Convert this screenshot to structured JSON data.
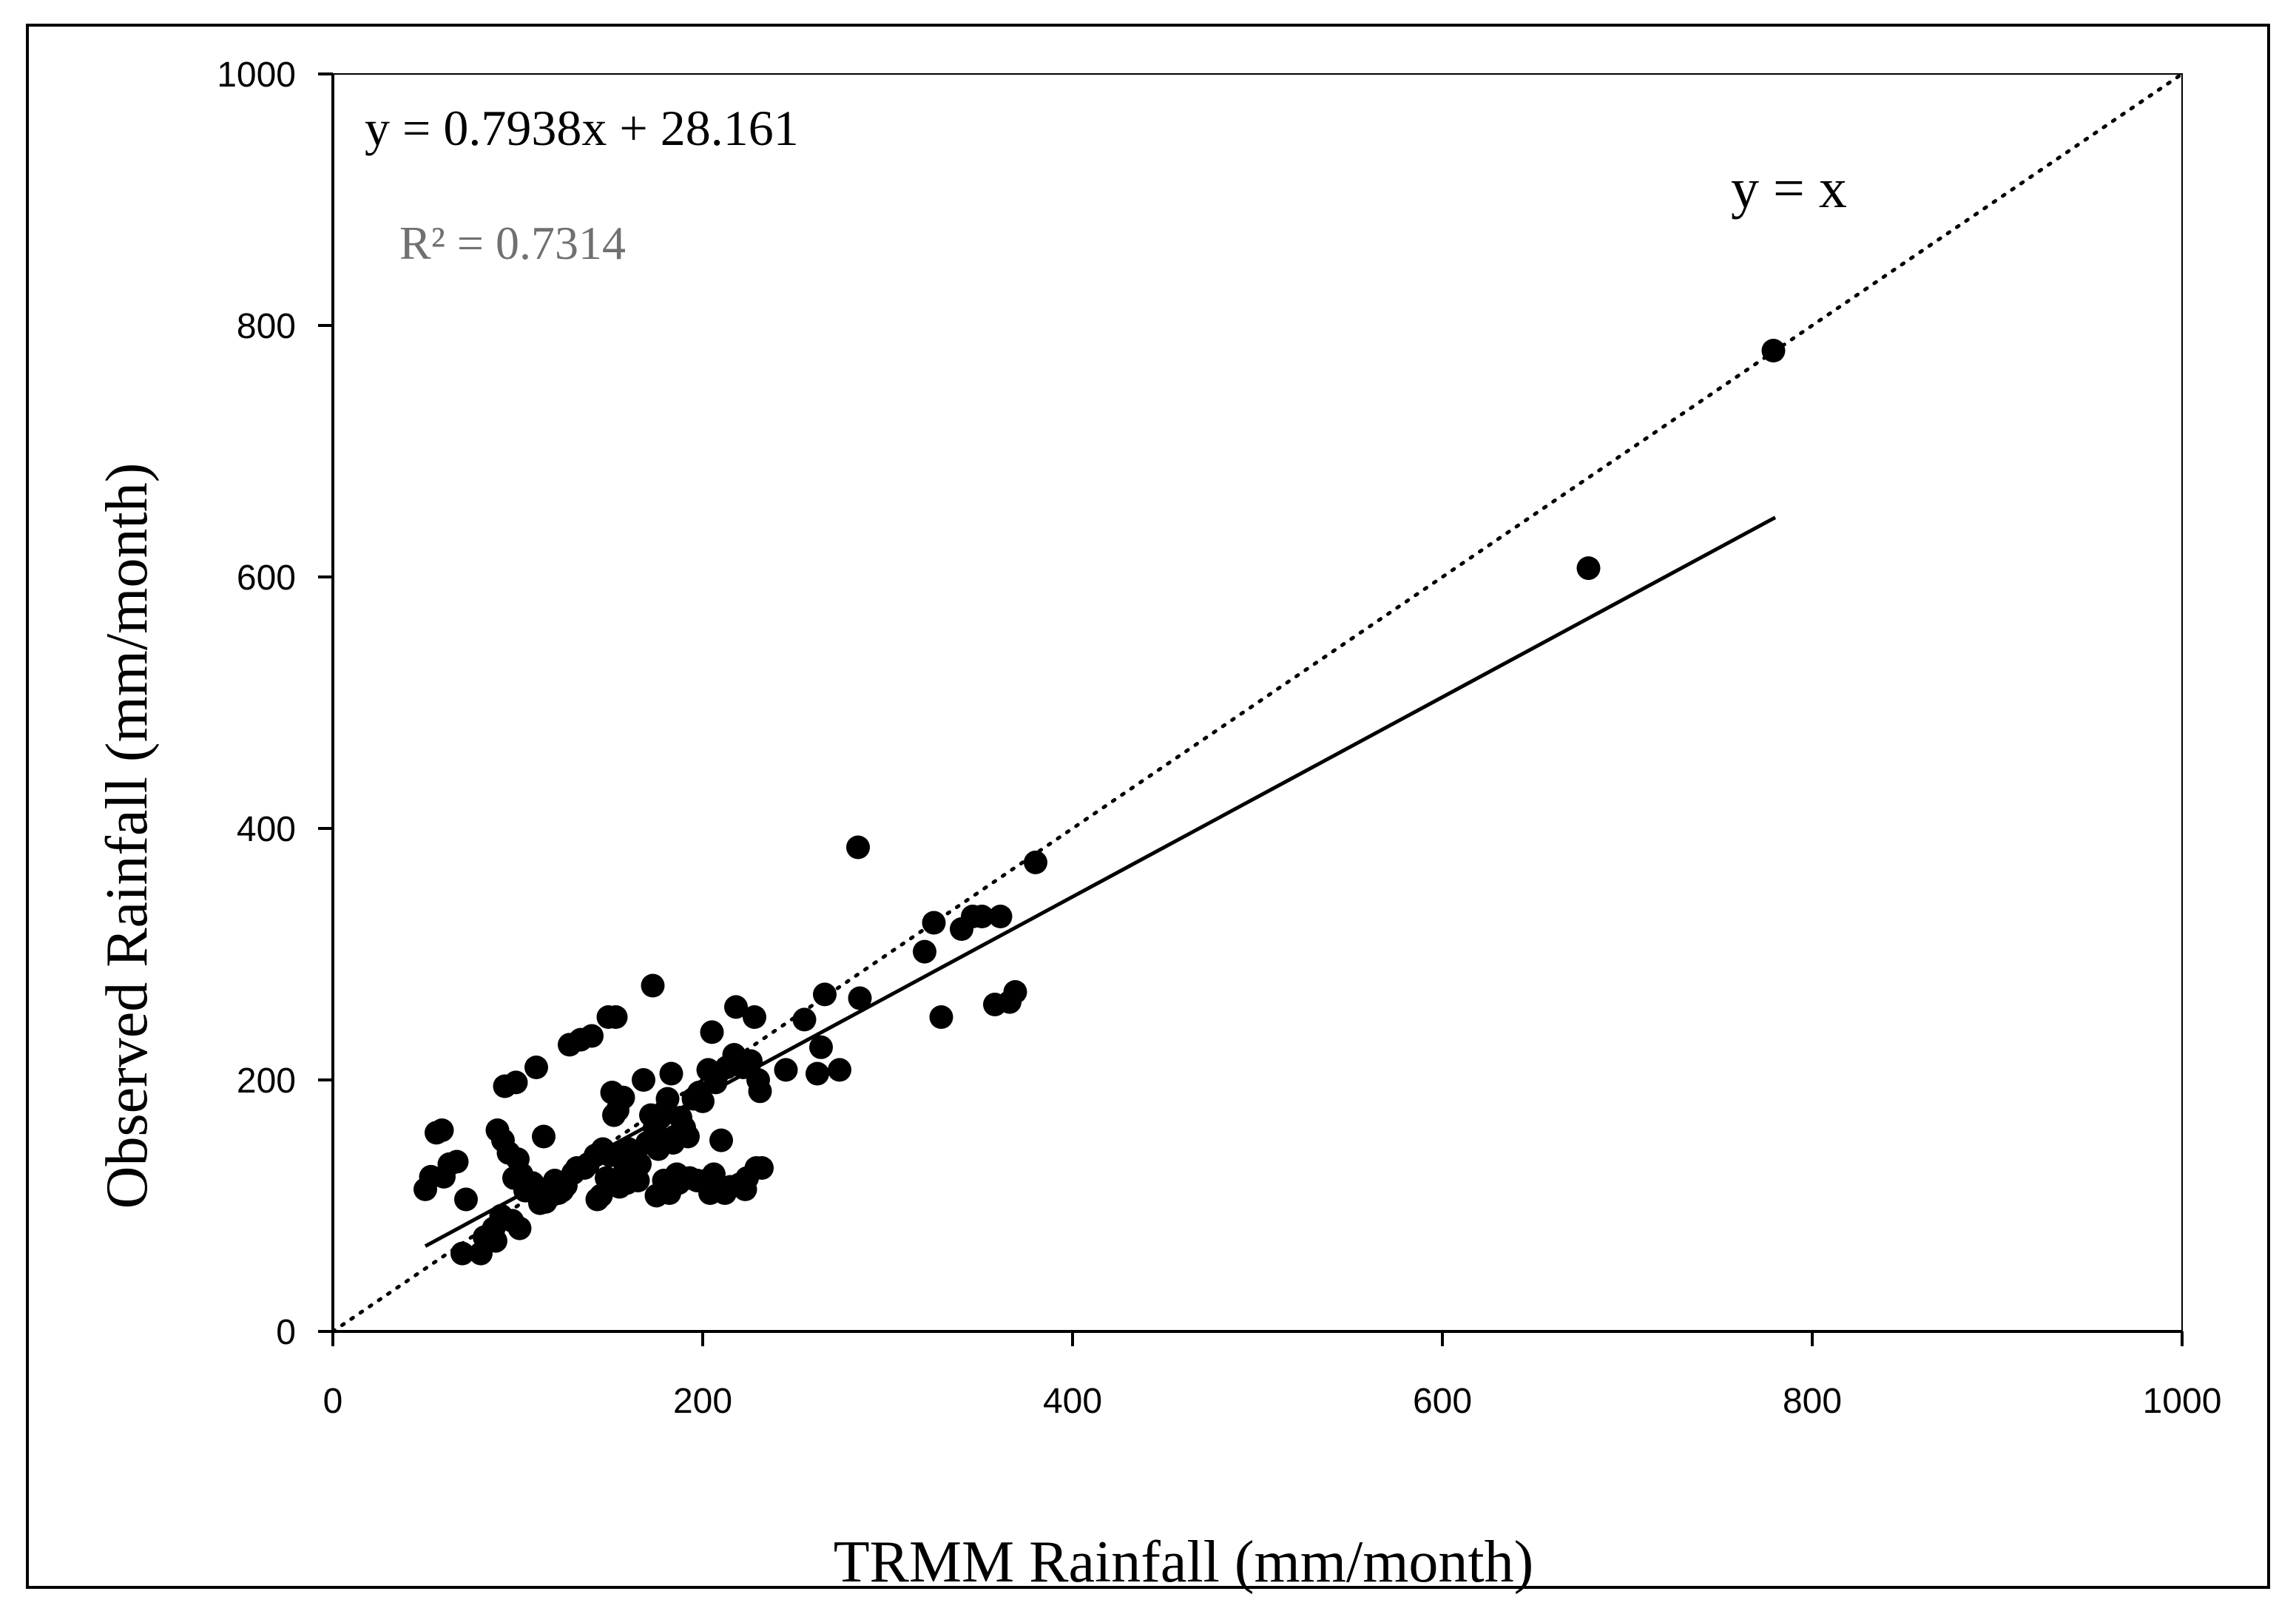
{
  "chart_data": {
    "type": "scatter",
    "xlabel": "TRMM Rainfall (mm/month)",
    "ylabel": "Observed Rainfall (mm/month)",
    "xlim": [
      0,
      1000
    ],
    "ylim": [
      0,
      1000
    ],
    "xticks": [
      "0",
      "200",
      "400",
      "600",
      "800",
      "1000"
    ],
    "yticks": [
      "0",
      "200",
      "400",
      "600",
      "800",
      "1000"
    ],
    "grid": false,
    "legend": "none",
    "annotations": {
      "equation": "y = 0.7938x + 28.161",
      "r_squared": "R² = 0.7314",
      "identity_label": "y = x"
    },
    "trendline": {
      "slope": 0.7938,
      "intercept": 28.161,
      "x_range": [
        50,
        780
      ]
    },
    "identity_line": {
      "x_range": [
        0,
        1000
      ]
    },
    "colors": {
      "points": "#000000",
      "r_squared_text": "#707070"
    },
    "points": [
      [
        50,
        113
      ],
      [
        53,
        123
      ],
      [
        56,
        158
      ],
      [
        59,
        160
      ],
      [
        60,
        123
      ],
      [
        63,
        133
      ],
      [
        67,
        135
      ],
      [
        70,
        62
      ],
      [
        72,
        105
      ],
      [
        80,
        62
      ],
      [
        82,
        75
      ],
      [
        87,
        82
      ],
      [
        88,
        72
      ],
      [
        89,
        160
      ],
      [
        91,
        92
      ],
      [
        92,
        152
      ],
      [
        93,
        195
      ],
      [
        95,
        142
      ],
      [
        97,
        88
      ],
      [
        98,
        122
      ],
      [
        99,
        198
      ],
      [
        100,
        137
      ],
      [
        101,
        82
      ],
      [
        102,
        125
      ],
      [
        104,
        112
      ],
      [
        106,
        112
      ],
      [
        108,
        118
      ],
      [
        110,
        210
      ],
      [
        112,
        102
      ],
      [
        114,
        155
      ],
      [
        115,
        103
      ],
      [
        118,
        108
      ],
      [
        120,
        120
      ],
      [
        122,
        110
      ],
      [
        124,
        112
      ],
      [
        126,
        116
      ],
      [
        128,
        228
      ],
      [
        130,
        126
      ],
      [
        132,
        130
      ],
      [
        134,
        232
      ],
      [
        136,
        130
      ],
      [
        138,
        133
      ],
      [
        140,
        235
      ],
      [
        142,
        140
      ],
      [
        143,
        105
      ],
      [
        145,
        108
      ],
      [
        146,
        145
      ],
      [
        148,
        122
      ],
      [
        149,
        250
      ],
      [
        150,
        140
      ],
      [
        151,
        190
      ],
      [
        152,
        172
      ],
      [
        153,
        250
      ],
      [
        154,
        176
      ],
      [
        155,
        115
      ],
      [
        156,
        140
      ],
      [
        157,
        186
      ],
      [
        158,
        128
      ],
      [
        159,
        118
      ],
      [
        160,
        145
      ],
      [
        162,
        125
      ],
      [
        163,
        140
      ],
      [
        164,
        128
      ],
      [
        165,
        120
      ],
      [
        166,
        133
      ],
      [
        168,
        200
      ],
      [
        170,
        150
      ],
      [
        172,
        172
      ],
      [
        173,
        275
      ],
      [
        174,
        162
      ],
      [
        175,
        108
      ],
      [
        176,
        145
      ],
      [
        177,
        170
      ],
      [
        178,
        150
      ],
      [
        179,
        120
      ],
      [
        180,
        176
      ],
      [
        181,
        185
      ],
      [
        182,
        110
      ],
      [
        183,
        205
      ],
      [
        184,
        150
      ],
      [
        185,
        155
      ],
      [
        186,
        125
      ],
      [
        187,
        118
      ],
      [
        188,
        170
      ],
      [
        190,
        162
      ],
      [
        192,
        155
      ],
      [
        193,
        122
      ],
      [
        195,
        185
      ],
      [
        197,
        120
      ],
      [
        198,
        190
      ],
      [
        200,
        183
      ],
      [
        202,
        120
      ],
      [
        203,
        208
      ],
      [
        204,
        110
      ],
      [
        205,
        238
      ],
      [
        206,
        125
      ],
      [
        207,
        198
      ],
      [
        208,
        205
      ],
      [
        210,
        152
      ],
      [
        212,
        110
      ],
      [
        213,
        210
      ],
      [
        215,
        115
      ],
      [
        217,
        220
      ],
      [
        218,
        258
      ],
      [
        220,
        117
      ],
      [
        222,
        210
      ],
      [
        223,
        113
      ],
      [
        224,
        122
      ],
      [
        226,
        215
      ],
      [
        228,
        250
      ],
      [
        229,
        130
      ],
      [
        230,
        200
      ],
      [
        231,
        191
      ],
      [
        232,
        130
      ],
      [
        245,
        208
      ],
      [
        255,
        248
      ],
      [
        262,
        205
      ],
      [
        264,
        226
      ],
      [
        266,
        268
      ],
      [
        274,
        208
      ],
      [
        284,
        385
      ],
      [
        285,
        265
      ],
      [
        320,
        302
      ],
      [
        325,
        325
      ],
      [
        329,
        250
      ],
      [
        340,
        320
      ],
      [
        346,
        330
      ],
      [
        351,
        330
      ],
      [
        358,
        260
      ],
      [
        361,
        330
      ],
      [
        366,
        262
      ],
      [
        369,
        270
      ],
      [
        380,
        373
      ],
      [
        679,
        607
      ],
      [
        779,
        780
      ]
    ]
  }
}
